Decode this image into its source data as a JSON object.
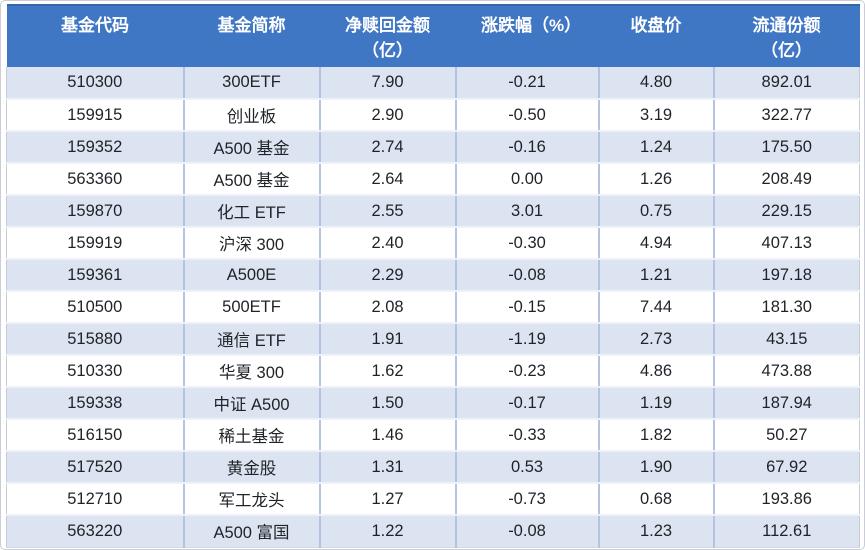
{
  "chart_data": {
    "type": "table",
    "columns": [
      "基金代码",
      "基金简称",
      "净赎回金额（亿）",
      "涨跌幅（%）",
      "收盘价",
      "流通份额（亿）"
    ],
    "rows": [
      [
        "510300",
        "300ETF",
        "7.90",
        "-0.21",
        "4.80",
        "892.01"
      ],
      [
        "159915",
        "创业板",
        "2.90",
        "-0.50",
        "3.19",
        "322.77"
      ],
      [
        "159352",
        "A500 基金",
        "2.74",
        "-0.16",
        "1.24",
        "175.50"
      ],
      [
        "563360",
        "A500 基金",
        "2.64",
        "0.00",
        "1.26",
        "208.49"
      ],
      [
        "159870",
        "化工 ETF",
        "2.55",
        "3.01",
        "0.75",
        "229.15"
      ],
      [
        "159919",
        "沪深 300",
        "2.40",
        "-0.30",
        "4.94",
        "407.13"
      ],
      [
        "159361",
        "A500E",
        "2.29",
        "-0.08",
        "1.21",
        "197.18"
      ],
      [
        "510500",
        "500ETF",
        "2.08",
        "-0.15",
        "7.44",
        "181.30"
      ],
      [
        "515880",
        "通信 ETF",
        "1.91",
        "-1.19",
        "2.73",
        "43.15"
      ],
      [
        "510330",
        "华夏 300",
        "1.62",
        "-0.23",
        "4.86",
        "473.88"
      ],
      [
        "159338",
        "中证 A500",
        "1.50",
        "-0.17",
        "1.19",
        "187.94"
      ],
      [
        "516150",
        "稀土基金",
        "1.46",
        "-0.33",
        "1.82",
        "50.27"
      ],
      [
        "517520",
        "黄金股",
        "1.31",
        "0.53",
        "1.90",
        "67.92"
      ],
      [
        "512710",
        "军工龙头",
        "1.27",
        "-0.73",
        "0.68",
        "193.86"
      ],
      [
        "563220",
        "A500 富国",
        "1.22",
        "-0.08",
        "1.23",
        "112.61"
      ]
    ],
    "layout": {
      "banded_rows": true,
      "banded_pattern": "odd-rows-shaded",
      "header_position": "top"
    }
  },
  "colors": {
    "header_bg": "#4077C5",
    "header_text": "#FFFFFF",
    "band_row_bg": "#DCE3F1",
    "plain_row_bg": "#FFFFFF",
    "column_divider": "#B3C3E0",
    "row_divider": "#EEF1F7",
    "body_text": "#1F2328",
    "frame_border": "#CACDD4"
  }
}
